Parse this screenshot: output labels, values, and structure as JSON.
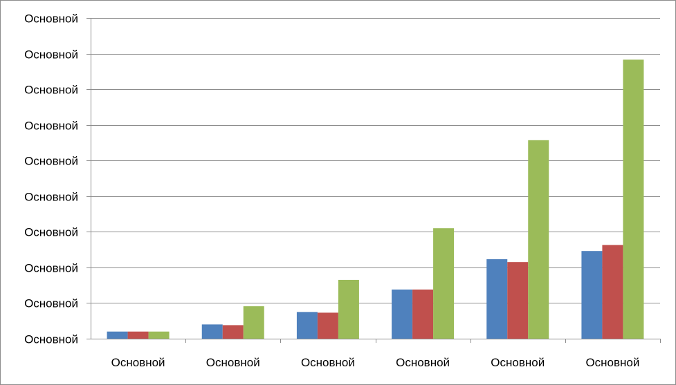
{
  "chart_data": {
    "type": "bar",
    "title": "",
    "xlabel": "",
    "ylabel": "",
    "categories": [
      "Основной",
      "Основной",
      "Основной",
      "Основной",
      "Основной",
      "Основной"
    ],
    "y_tick_labels": [
      "Основной",
      "Основной",
      "Основной",
      "Основной",
      "Основной",
      "Основной",
      "Основной",
      "Основной",
      "Основной",
      "Основной"
    ],
    "ylim": [
      0,
      9
    ],
    "grid": true,
    "legend": "none",
    "series": [
      {
        "color": "#4f81bd",
        "values": [
          0.2,
          0.4,
          0.75,
          1.38,
          2.23,
          2.46
        ]
      },
      {
        "color": "#c0504d",
        "values": [
          0.2,
          0.38,
          0.73,
          1.38,
          2.15,
          2.63
        ]
      },
      {
        "color": "#9bbb59",
        "values": [
          0.2,
          0.91,
          1.65,
          3.1,
          5.57,
          7.83
        ]
      }
    ]
  }
}
